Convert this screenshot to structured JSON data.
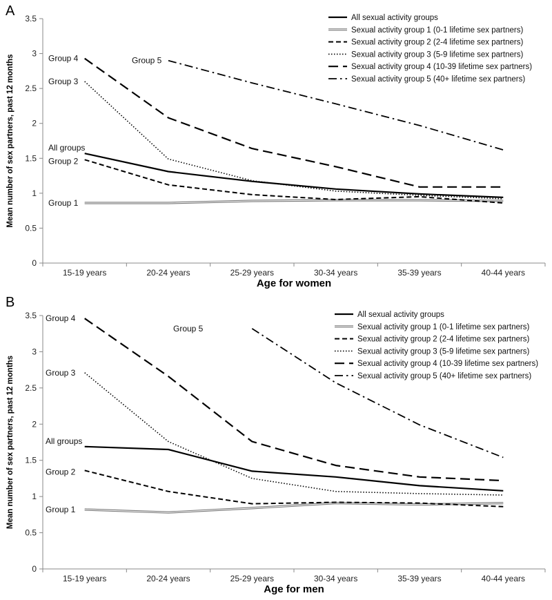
{
  "chart_data": [
    {
      "type": "line",
      "panel": "A",
      "xlabel": "Age for women",
      "ylabel": "Mean number of sex partners, past 12 months",
      "ylim": [
        0,
        3.5
      ],
      "ytick_step": 0.5,
      "grid": false,
      "legend_position": "top-right",
      "categories": [
        "15-19 years",
        "20-24 years",
        "25-29 years",
        "30-34 years",
        "35-39 years",
        "40-44 years"
      ],
      "series": [
        {
          "name": "All sexual activity groups",
          "style": "solid",
          "values": [
            1.57,
            1.31,
            1.17,
            1.06,
            0.99,
            0.94
          ],
          "annotation": "All groups",
          "annotation_index": 0
        },
        {
          "name": "Sexual activity group 1 (0-1 lifetime sex partners)",
          "style": "double",
          "values": [
            0.86,
            0.86,
            0.89,
            0.9,
            0.9,
            0.89
          ],
          "annotation": "Group 1",
          "annotation_index": 0
        },
        {
          "name": "Sexual activity group 2 (2-4 lifetime sex partners)",
          "style": "shortdash",
          "values": [
            1.48,
            1.12,
            0.98,
            0.91,
            0.95,
            0.86
          ],
          "annotation": "Group 2",
          "annotation_index": 0
        },
        {
          "name": "Sexual activity group 3 (5-9 lifetime sex partners)",
          "style": "dotted",
          "values": [
            2.6,
            1.49,
            1.18,
            1.03,
            0.97,
            0.92
          ],
          "annotation": "Group 3",
          "annotation_index": 0
        },
        {
          "name": "Sexual activity group 4 (10-39 lifetime sex partners)",
          "style": "longdash",
          "values": [
            2.93,
            2.08,
            1.64,
            1.38,
            1.09,
            1.09
          ],
          "annotation": "Group 4",
          "annotation_index": 0
        },
        {
          "name": "Sexual activity group 5 (40+ lifetime sex partners)",
          "style": "dashdot",
          "values": [
            null,
            2.9,
            2.58,
            2.28,
            1.97,
            1.62
          ],
          "annotation": "Group 5",
          "annotation_index": 1
        }
      ]
    },
    {
      "type": "line",
      "panel": "B",
      "xlabel": "Age for men",
      "ylabel": "Mean number of sex partners, past 12 months",
      "ylim": [
        0,
        3.5
      ],
      "ytick_step": 0.5,
      "grid": false,
      "legend_position": "top-right",
      "categories": [
        "15-19 years",
        "20-24 years",
        "25-29 years",
        "30-34 years",
        "35-39 years",
        "40-44 years"
      ],
      "series": [
        {
          "name": "All sexual activity groups",
          "style": "solid",
          "values": [
            1.69,
            1.65,
            1.35,
            1.27,
            1.15,
            1.08
          ],
          "annotation": "All groups",
          "annotation_index": 0
        },
        {
          "name": "Sexual activity group 1 (0-1 lifetime sex partners)",
          "style": "double",
          "values": [
            0.82,
            0.78,
            0.84,
            0.91,
            0.89,
            0.91
          ],
          "annotation": "Group 1",
          "annotation_index": 0
        },
        {
          "name": "Sexual activity group 2 (2-4 lifetime sex partners)",
          "style": "shortdash",
          "values": [
            1.36,
            1.07,
            0.9,
            0.92,
            0.91,
            0.86
          ],
          "annotation": "Group 2",
          "annotation_index": 0
        },
        {
          "name": "Sexual activity group 3 (5-9 lifetime sex partners)",
          "style": "dotted",
          "values": [
            2.71,
            1.76,
            1.25,
            1.07,
            1.04,
            1.02
          ],
          "annotation": "Group 3",
          "annotation_index": 0
        },
        {
          "name": "Sexual activity group 4 (10-39 lifetime sex partners)",
          "style": "longdash",
          "values": [
            3.46,
            2.66,
            1.76,
            1.43,
            1.27,
            1.22
          ],
          "annotation": "Group 4",
          "annotation_index": 0
        },
        {
          "name": "Sexual activity group 5 (40+ lifetime sex partners)",
          "style": "dashdot",
          "values": [
            null,
            null,
            3.32,
            2.57,
            1.99,
            1.54
          ],
          "annotation": "Group 5",
          "annotation_index": 1.85
        }
      ]
    }
  ]
}
